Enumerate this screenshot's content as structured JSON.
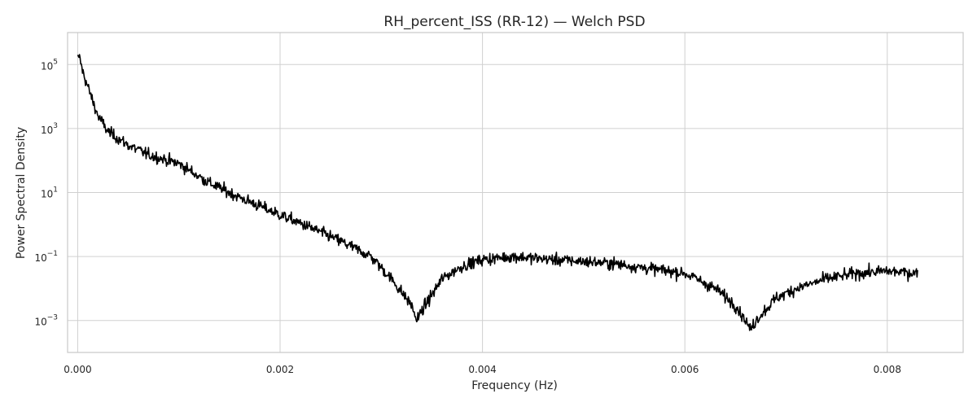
{
  "chart_data": {
    "type": "line",
    "title": "RH_percent_ISS (RR-12) — Welch PSD",
    "xlabel": "Frequency (Hz)",
    "ylabel": "Power Spectral Density",
    "yscale": "log",
    "xlim": [
      -0.0001,
      0.00875
    ],
    "ylim": [
      0.0001,
      1000000.0
    ],
    "grid": true,
    "x_ticks": [
      {
        "value": 0.0,
        "label": "0.000"
      },
      {
        "value": 0.002,
        "label": "0.002"
      },
      {
        "value": 0.004,
        "label": "0.004"
      },
      {
        "value": 0.006,
        "label": "0.006"
      },
      {
        "value": 0.008,
        "label": "0.008"
      }
    ],
    "y_ticks": [
      {
        "value": 100000,
        "base": "10",
        "exp": "5"
      },
      {
        "value": 1000,
        "base": "10",
        "exp": "3"
      },
      {
        "value": 10,
        "base": "10",
        "exp": "1"
      },
      {
        "value": 0.1,
        "base": "10",
        "exp": "−1"
      },
      {
        "value": 0.001,
        "base": "10",
        "exp": "−3"
      }
    ],
    "series": [
      {
        "color": "#000000",
        "x": [
          0.0,
          2e-05,
          5e-05,
          0.0001,
          0.0002,
          0.0003,
          0.0005,
          0.0007,
          0.001,
          0.0013,
          0.0016,
          0.002,
          0.0023,
          0.0026,
          0.0029,
          0.0031,
          0.0033,
          0.00335,
          0.0034,
          0.0036,
          0.0038,
          0.004,
          0.0043,
          0.0047,
          0.005,
          0.0053,
          0.0057,
          0.006,
          0.0063,
          0.0065,
          0.0066,
          0.00665,
          0.0067,
          0.0069,
          0.0071,
          0.0074,
          0.0077,
          0.008,
          0.0083
        ],
        "y": [
          200000,
          150000,
          60000,
          20000,
          2500,
          800,
          300,
          150,
          80,
          20,
          7,
          2,
          0.8,
          0.3,
          0.1,
          0.02,
          0.003,
          0.001,
          0.002,
          0.02,
          0.05,
          0.08,
          0.1,
          0.08,
          0.07,
          0.06,
          0.04,
          0.03,
          0.01,
          0.003,
          0.001,
          0.0005,
          0.001,
          0.005,
          0.01,
          0.02,
          0.03,
          0.035,
          0.03
        ]
      }
    ]
  }
}
